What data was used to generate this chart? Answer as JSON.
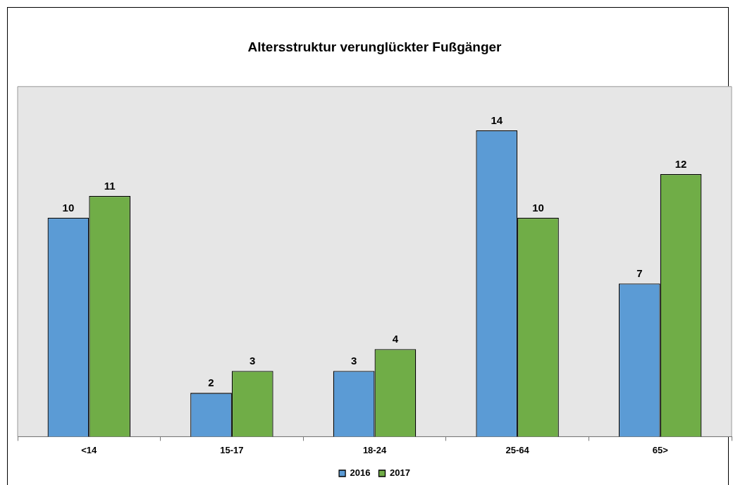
{
  "chart_data": {
    "type": "bar",
    "title": "Altersstruktur verunglückter Fußgänger",
    "categories": [
      "<14",
      "15-17",
      "18-24",
      "25-64",
      "65>"
    ],
    "series": [
      {
        "name": "2016",
        "color": "#5b9bd5",
        "values": [
          10,
          2,
          3,
          14,
          7
        ]
      },
      {
        "name": "2017",
        "color": "#70ad47",
        "values": [
          11,
          3,
          4,
          10,
          12
        ]
      }
    ],
    "ylim": [
      0,
      16
    ],
    "data_labels": true,
    "legend": "bottom",
    "tick_labels": "x",
    "grid": false
  }
}
